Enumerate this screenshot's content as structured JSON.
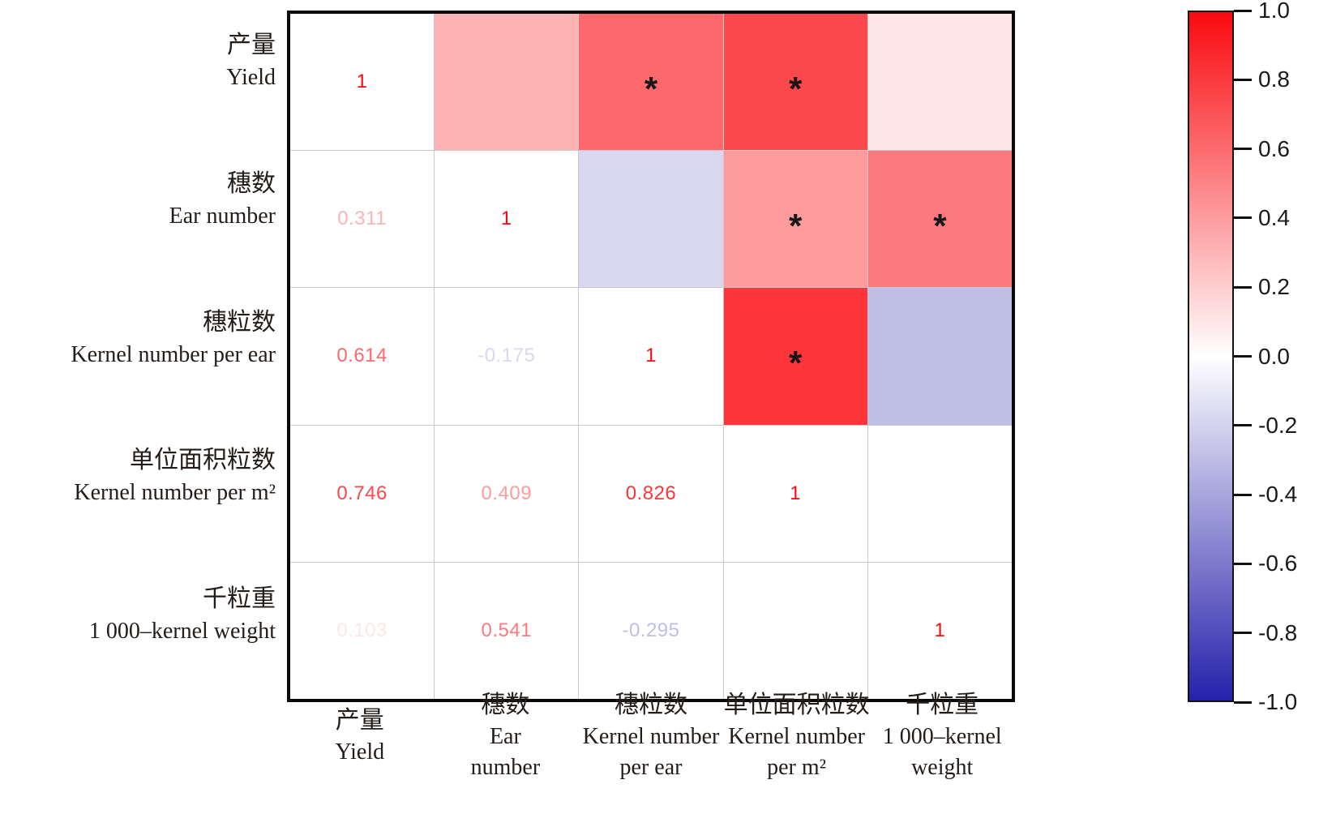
{
  "chart_data": {
    "type": "heatmap",
    "title": "",
    "variables": [
      {
        "zh": "产量",
        "en": "Yield"
      },
      {
        "zh": "穗数",
        "en": "Ear number"
      },
      {
        "zh": "穗粒数",
        "en": "Kernel number per ear"
      },
      {
        "zh": "单位面积粒数",
        "en": "Kernel number per m²"
      },
      {
        "zh": "千粒重",
        "en": "1 000–kernel weight"
      }
    ],
    "row_labels": [
      {
        "lines": [
          "产量",
          "Yield"
        ]
      },
      {
        "lines": [
          "穗数",
          "Ear number"
        ]
      },
      {
        "lines": [
          "穗粒数",
          "Kernel number per ear"
        ]
      },
      {
        "lines": [
          "单位面积粒数",
          "Kernel number per m²"
        ]
      },
      {
        "lines": [
          "千粒重",
          "1 000–kernel weight"
        ]
      }
    ],
    "col_labels": [
      {
        "lines": [
          "产量",
          "Yield"
        ]
      },
      {
        "lines": [
          "穗数",
          "Ear",
          "number"
        ]
      },
      {
        "lines": [
          "穗粒数",
          "Kernel number",
          "per ear"
        ]
      },
      {
        "lines": [
          "单位面积粒数",
          "Kernel number",
          "per m²"
        ]
      },
      {
        "lines": [
          "千粒重",
          "1 000–kernel",
          "weight"
        ]
      }
    ],
    "cells": [
      [
        {
          "kind": "diagonal",
          "text": "1",
          "value": 1
        },
        {
          "kind": "upper",
          "value": 0.311,
          "significant": false
        },
        {
          "kind": "upper",
          "value": 0.614,
          "significant": true
        },
        {
          "kind": "upper",
          "value": 0.746,
          "significant": true
        },
        {
          "kind": "upper",
          "value": 0.103,
          "significant": false
        }
      ],
      [
        {
          "kind": "lower",
          "text": "0.311",
          "value": 0.311
        },
        {
          "kind": "diagonal",
          "text": "1",
          "value": 1
        },
        {
          "kind": "upper",
          "value": -0.175,
          "significant": false
        },
        {
          "kind": "upper",
          "value": 0.409,
          "significant": true
        },
        {
          "kind": "upper",
          "value": 0.541,
          "significant": true
        }
      ],
      [
        {
          "kind": "lower",
          "text": "0.614",
          "value": 0.614
        },
        {
          "kind": "lower",
          "text": "-0.175",
          "value": -0.175
        },
        {
          "kind": "diagonal",
          "text": "1",
          "value": 1
        },
        {
          "kind": "upper",
          "value": 0.826,
          "significant": true
        },
        {
          "kind": "upper",
          "value": -0.295,
          "significant": false
        }
      ],
      [
        {
          "kind": "lower",
          "text": "0.746",
          "value": 0.746
        },
        {
          "kind": "lower",
          "text": "0.409",
          "value": 0.409
        },
        {
          "kind": "lower",
          "text": "0.826",
          "value": 0.826
        },
        {
          "kind": "diagonal",
          "text": "1",
          "value": 1
        },
        {
          "kind": "upper",
          "value": 0,
          "significant": false
        }
      ],
      [
        {
          "kind": "lower",
          "text": "0.103",
          "value": 0.103
        },
        {
          "kind": "lower",
          "text": "0.541",
          "value": 0.541
        },
        {
          "kind": "lower",
          "text": "-0.295",
          "value": -0.295
        },
        {
          "kind": "lower",
          "text": "",
          "value": null
        },
        {
          "kind": "diagonal",
          "text": "1",
          "value": 1
        }
      ]
    ],
    "significance_marker": "*",
    "value_range": [
      -1,
      1
    ],
    "colormap": {
      "positive": "#fa0a0f",
      "zero": "#ffffff",
      "negative": "#2621aa"
    },
    "colorbar_ticks": [
      "1.0",
      "0.8",
      "0.6",
      "0.4",
      "0.2",
      "0.0",
      "-0.2",
      "-0.4",
      "-0.6",
      "-0.8",
      "-1.0"
    ]
  }
}
